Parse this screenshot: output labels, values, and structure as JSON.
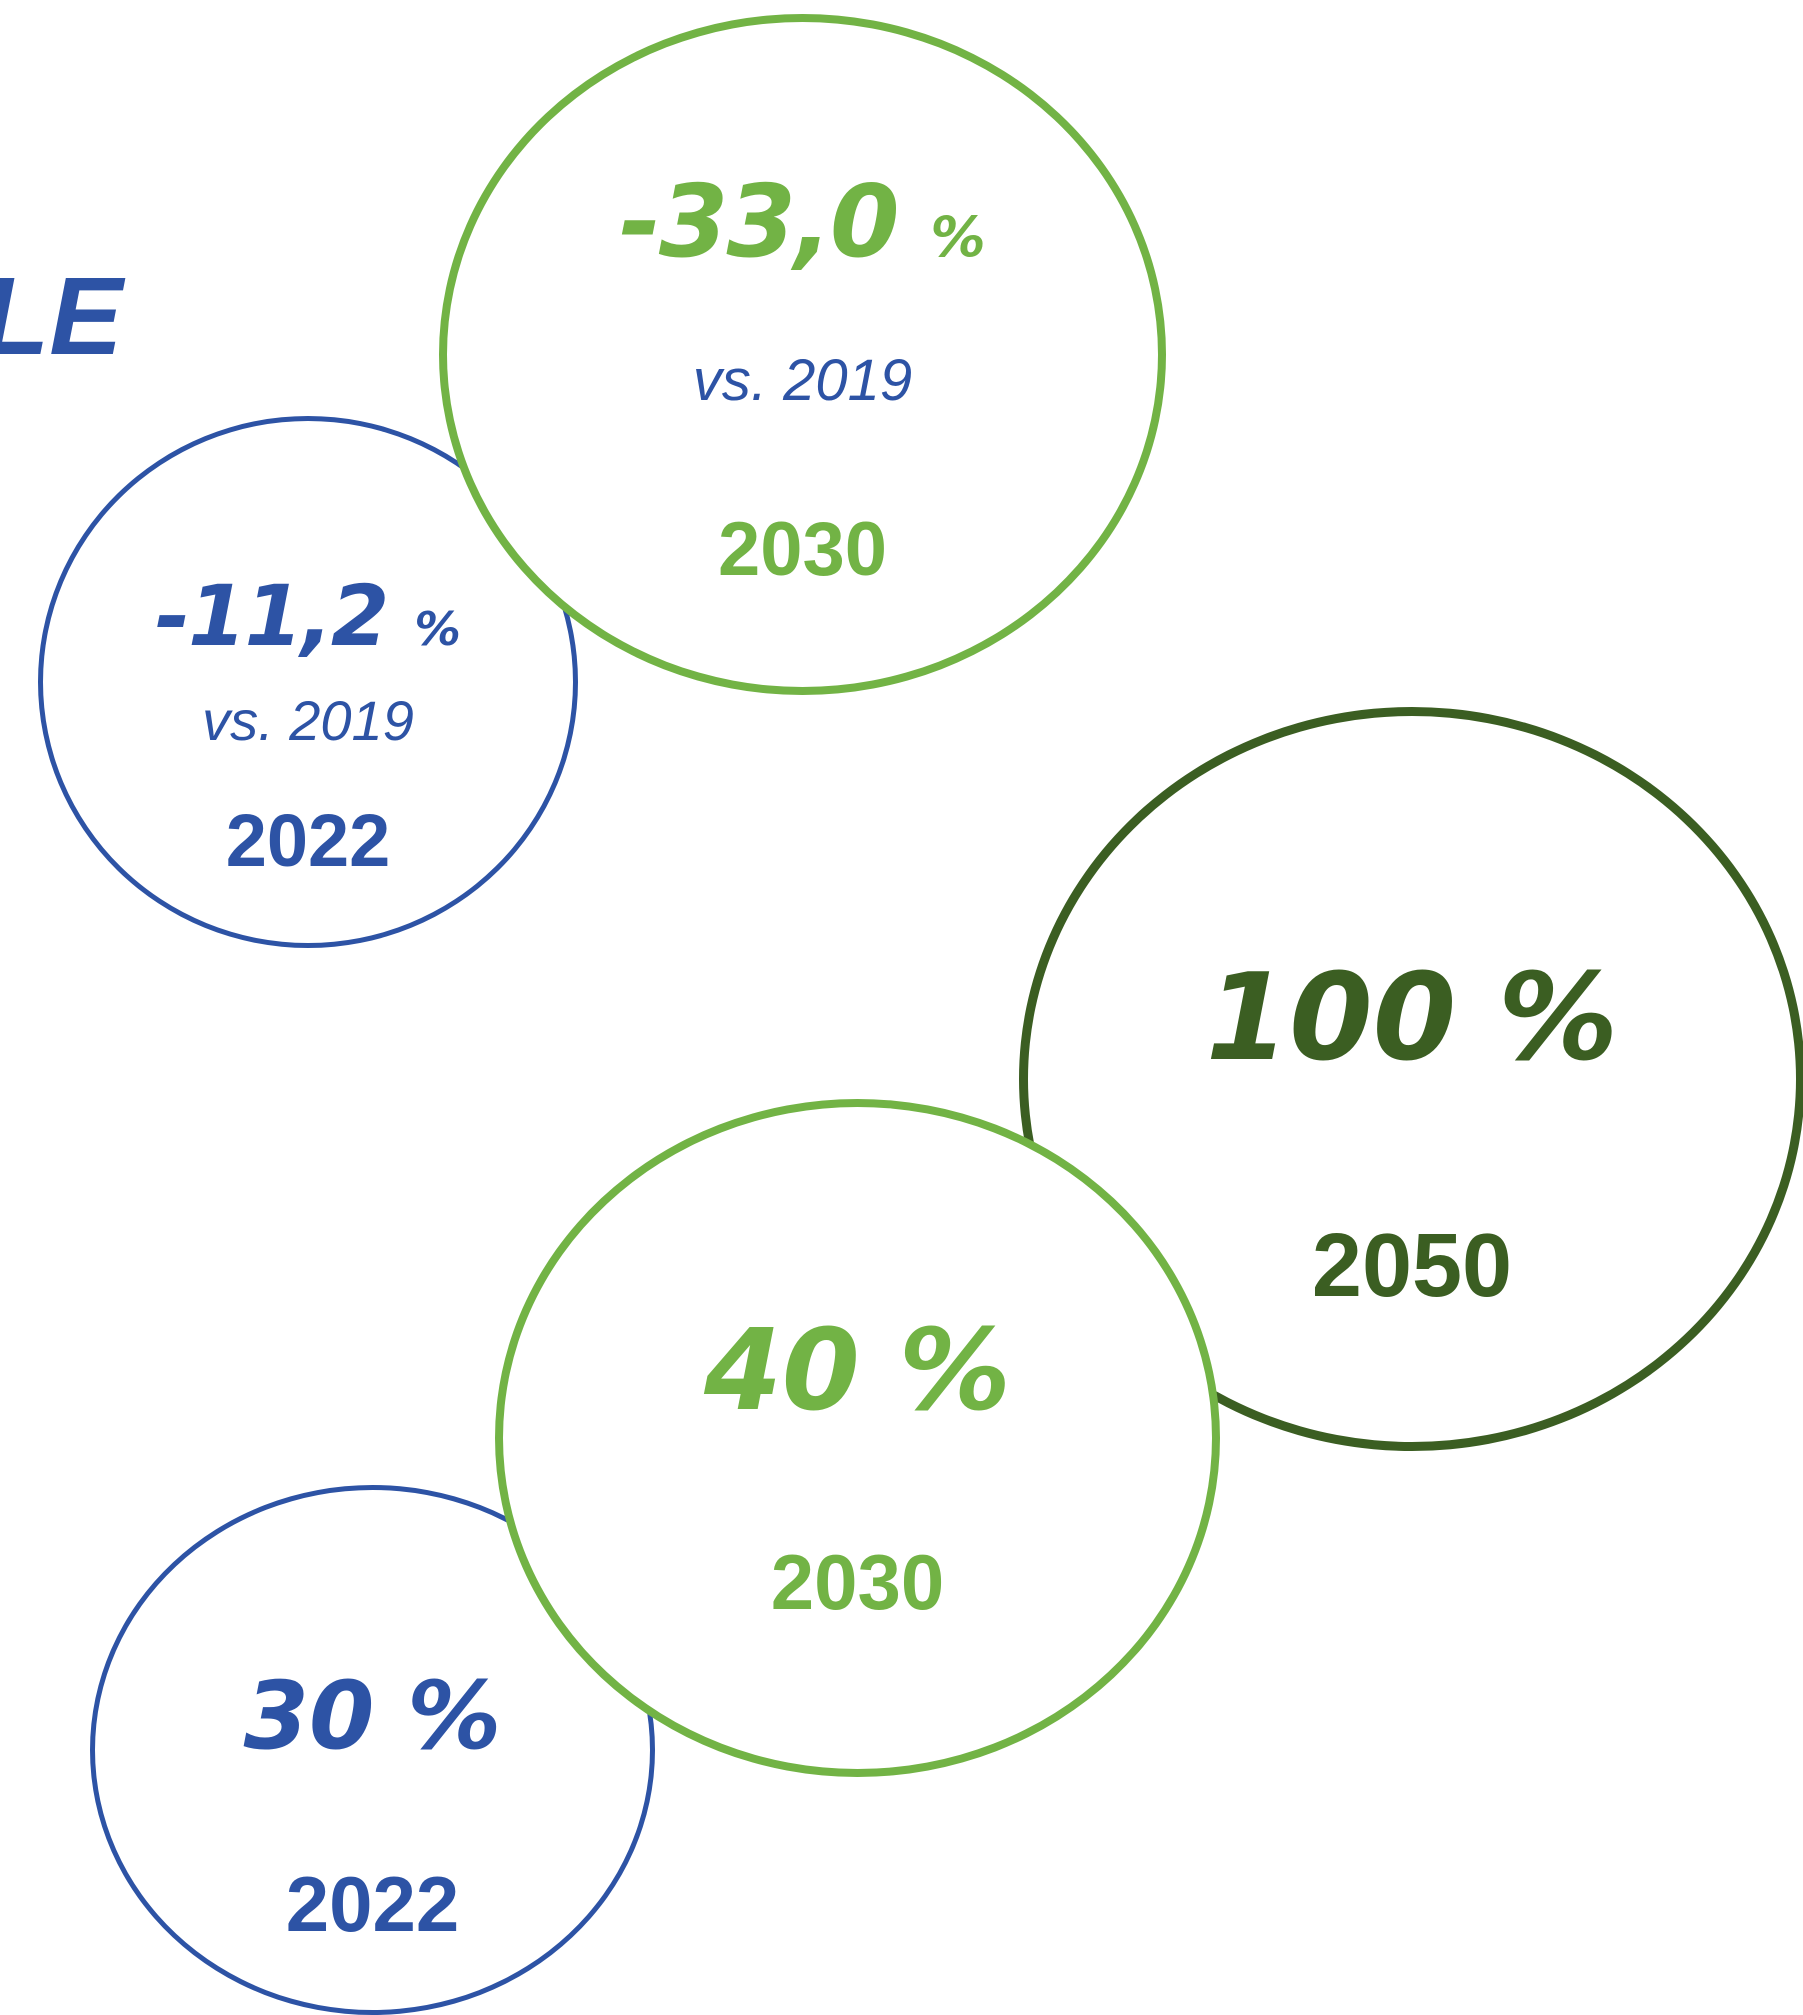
{
  "title_fragment": "LE",
  "colors": {
    "blue": "#2d53a5",
    "light_green": "#72b345",
    "dark_green": "#3b5e22"
  },
  "circles": {
    "upper_2022": {
      "value": "-11,2",
      "unit": "%",
      "reference": "vs. 2019",
      "year": "2022"
    },
    "upper_2030": {
      "value": "-33,0",
      "unit": "%",
      "reference": "vs. 2019",
      "year": "2030"
    },
    "lower_2050": {
      "value": "100 %",
      "year": "2050"
    },
    "lower_2030": {
      "value": "40 %",
      "year": "2030"
    },
    "lower_2022": {
      "value": "30 %",
      "year": "2022"
    }
  }
}
